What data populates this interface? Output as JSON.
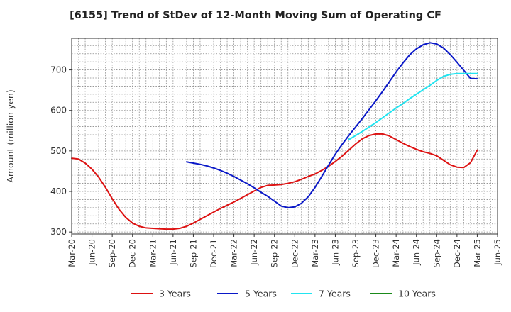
{
  "chart_data": {
    "type": "line",
    "title": "[6155]  Trend of StDev of 12-Month Moving Sum of Operating CF",
    "xlabel": "",
    "ylabel": "Amount (million yen)",
    "ylim": [
      295,
      778
    ],
    "yticks": [
      300,
      400,
      500,
      600,
      700
    ],
    "x_tick_labels": [
      "Mar-20",
      "Jun-20",
      "Sep-20",
      "Dec-20",
      "Mar-21",
      "Jun-21",
      "Sep-21",
      "Dec-21",
      "Mar-22",
      "Jun-22",
      "Sep-22",
      "Dec-22",
      "Mar-23",
      "Jun-23",
      "Sep-23",
      "Dec-23",
      "Mar-24",
      "Jun-24",
      "Sep-24",
      "Dec-24",
      "Mar-25",
      "Jun-25"
    ],
    "grid": true,
    "legend_position": "bottom",
    "series": [
      {
        "name": "3 Years",
        "color": "#dd1111",
        "x": [
          "Mar-20",
          "Apr-20",
          "May-20",
          "Jun-20",
          "Jul-20",
          "Aug-20",
          "Sep-20",
          "Oct-20",
          "Nov-20",
          "Dec-20",
          "Jan-21",
          "Feb-21",
          "Mar-21",
          "Apr-21",
          "May-21",
          "Jun-21",
          "Jul-21",
          "Aug-21",
          "Sep-21",
          "Oct-21",
          "Nov-21",
          "Dec-21",
          "Jan-22",
          "Feb-22",
          "Mar-22",
          "Apr-22",
          "May-22",
          "Jun-22",
          "Jul-22",
          "Aug-22",
          "Sep-22",
          "Oct-22",
          "Nov-22",
          "Dec-22",
          "Jan-23",
          "Feb-23",
          "Mar-23",
          "Apr-23",
          "May-23",
          "Jun-23",
          "Jul-23",
          "Aug-23",
          "Sep-23",
          "Oct-23",
          "Nov-23",
          "Dec-23",
          "Jan-24",
          "Feb-24",
          "Mar-24",
          "Apr-24",
          "May-24",
          "Jun-24",
          "Jul-24",
          "Aug-24",
          "Sep-24",
          "Oct-24",
          "Nov-24",
          "Dec-24",
          "Jan-25",
          "Feb-25",
          "Mar-25"
        ],
        "values": [
          482,
          480,
          470,
          455,
          435,
          410,
          382,
          356,
          336,
          322,
          314,
          310,
          309,
          308,
          307,
          307,
          309,
          314,
          322,
          331,
          340,
          349,
          358,
          366,
          374,
          383,
          392,
          401,
          410,
          415,
          416,
          417,
          420,
          424,
          430,
          437,
          443,
          452,
          462,
          474,
          487,
          502,
          517,
          530,
          538,
          542,
          542,
          537,
          528,
          519,
          511,
          504,
          498,
          494,
          488,
          477,
          466,
          460,
          459,
          471,
          502
        ]
      },
      {
        "name": "5 Years",
        "color": "#0a18c8",
        "x": [
          "Aug-21",
          "Sep-21",
          "Oct-21",
          "Nov-21",
          "Dec-21",
          "Jan-22",
          "Feb-22",
          "Mar-22",
          "Apr-22",
          "May-22",
          "Jun-22",
          "Jul-22",
          "Aug-22",
          "Sep-22",
          "Oct-22",
          "Nov-22",
          "Dec-22",
          "Jan-23",
          "Feb-23",
          "Mar-23",
          "Apr-23",
          "May-23",
          "Jun-23",
          "Jul-23",
          "Aug-23",
          "Sep-23",
          "Oct-23",
          "Nov-23",
          "Dec-23",
          "Jan-24",
          "Feb-24",
          "Mar-24",
          "Apr-24",
          "May-24",
          "Jun-24",
          "Jul-24",
          "Aug-24",
          "Sep-24",
          "Oct-24",
          "Nov-24",
          "Dec-24",
          "Jan-25",
          "Feb-25",
          "Mar-25"
        ],
        "values": [
          473,
          470,
          467,
          463,
          458,
          452,
          445,
          437,
          428,
          419,
          409,
          398,
          388,
          376,
          364,
          360,
          362,
          371,
          387,
          410,
          437,
          465,
          492,
          516,
          538,
          559,
          580,
          602,
          624,
          647,
          671,
          695,
          717,
          737,
          752,
          762,
          767,
          764,
          754,
          738,
          719,
          699,
          679,
          678
        ]
      },
      {
        "name": "7 Years",
        "color": "#22e4f0",
        "x": [
          "Aug-23",
          "Sep-23",
          "Oct-23",
          "Nov-23",
          "Dec-23",
          "Jan-24",
          "Feb-24",
          "Mar-24",
          "Apr-24",
          "May-24",
          "Jun-24",
          "Jul-24",
          "Aug-24",
          "Sep-24",
          "Oct-24",
          "Nov-24",
          "Dec-24",
          "Jan-25",
          "Feb-25",
          "Mar-25"
        ],
        "values": [
          528,
          538,
          548,
          559,
          570,
          582,
          594,
          606,
          617,
          629,
          640,
          651,
          662,
          674,
          684,
          689,
          691,
          691,
          691,
          691
        ]
      },
      {
        "name": "10 Years",
        "color": "#1a8a1a",
        "x": [],
        "values": []
      }
    ]
  }
}
